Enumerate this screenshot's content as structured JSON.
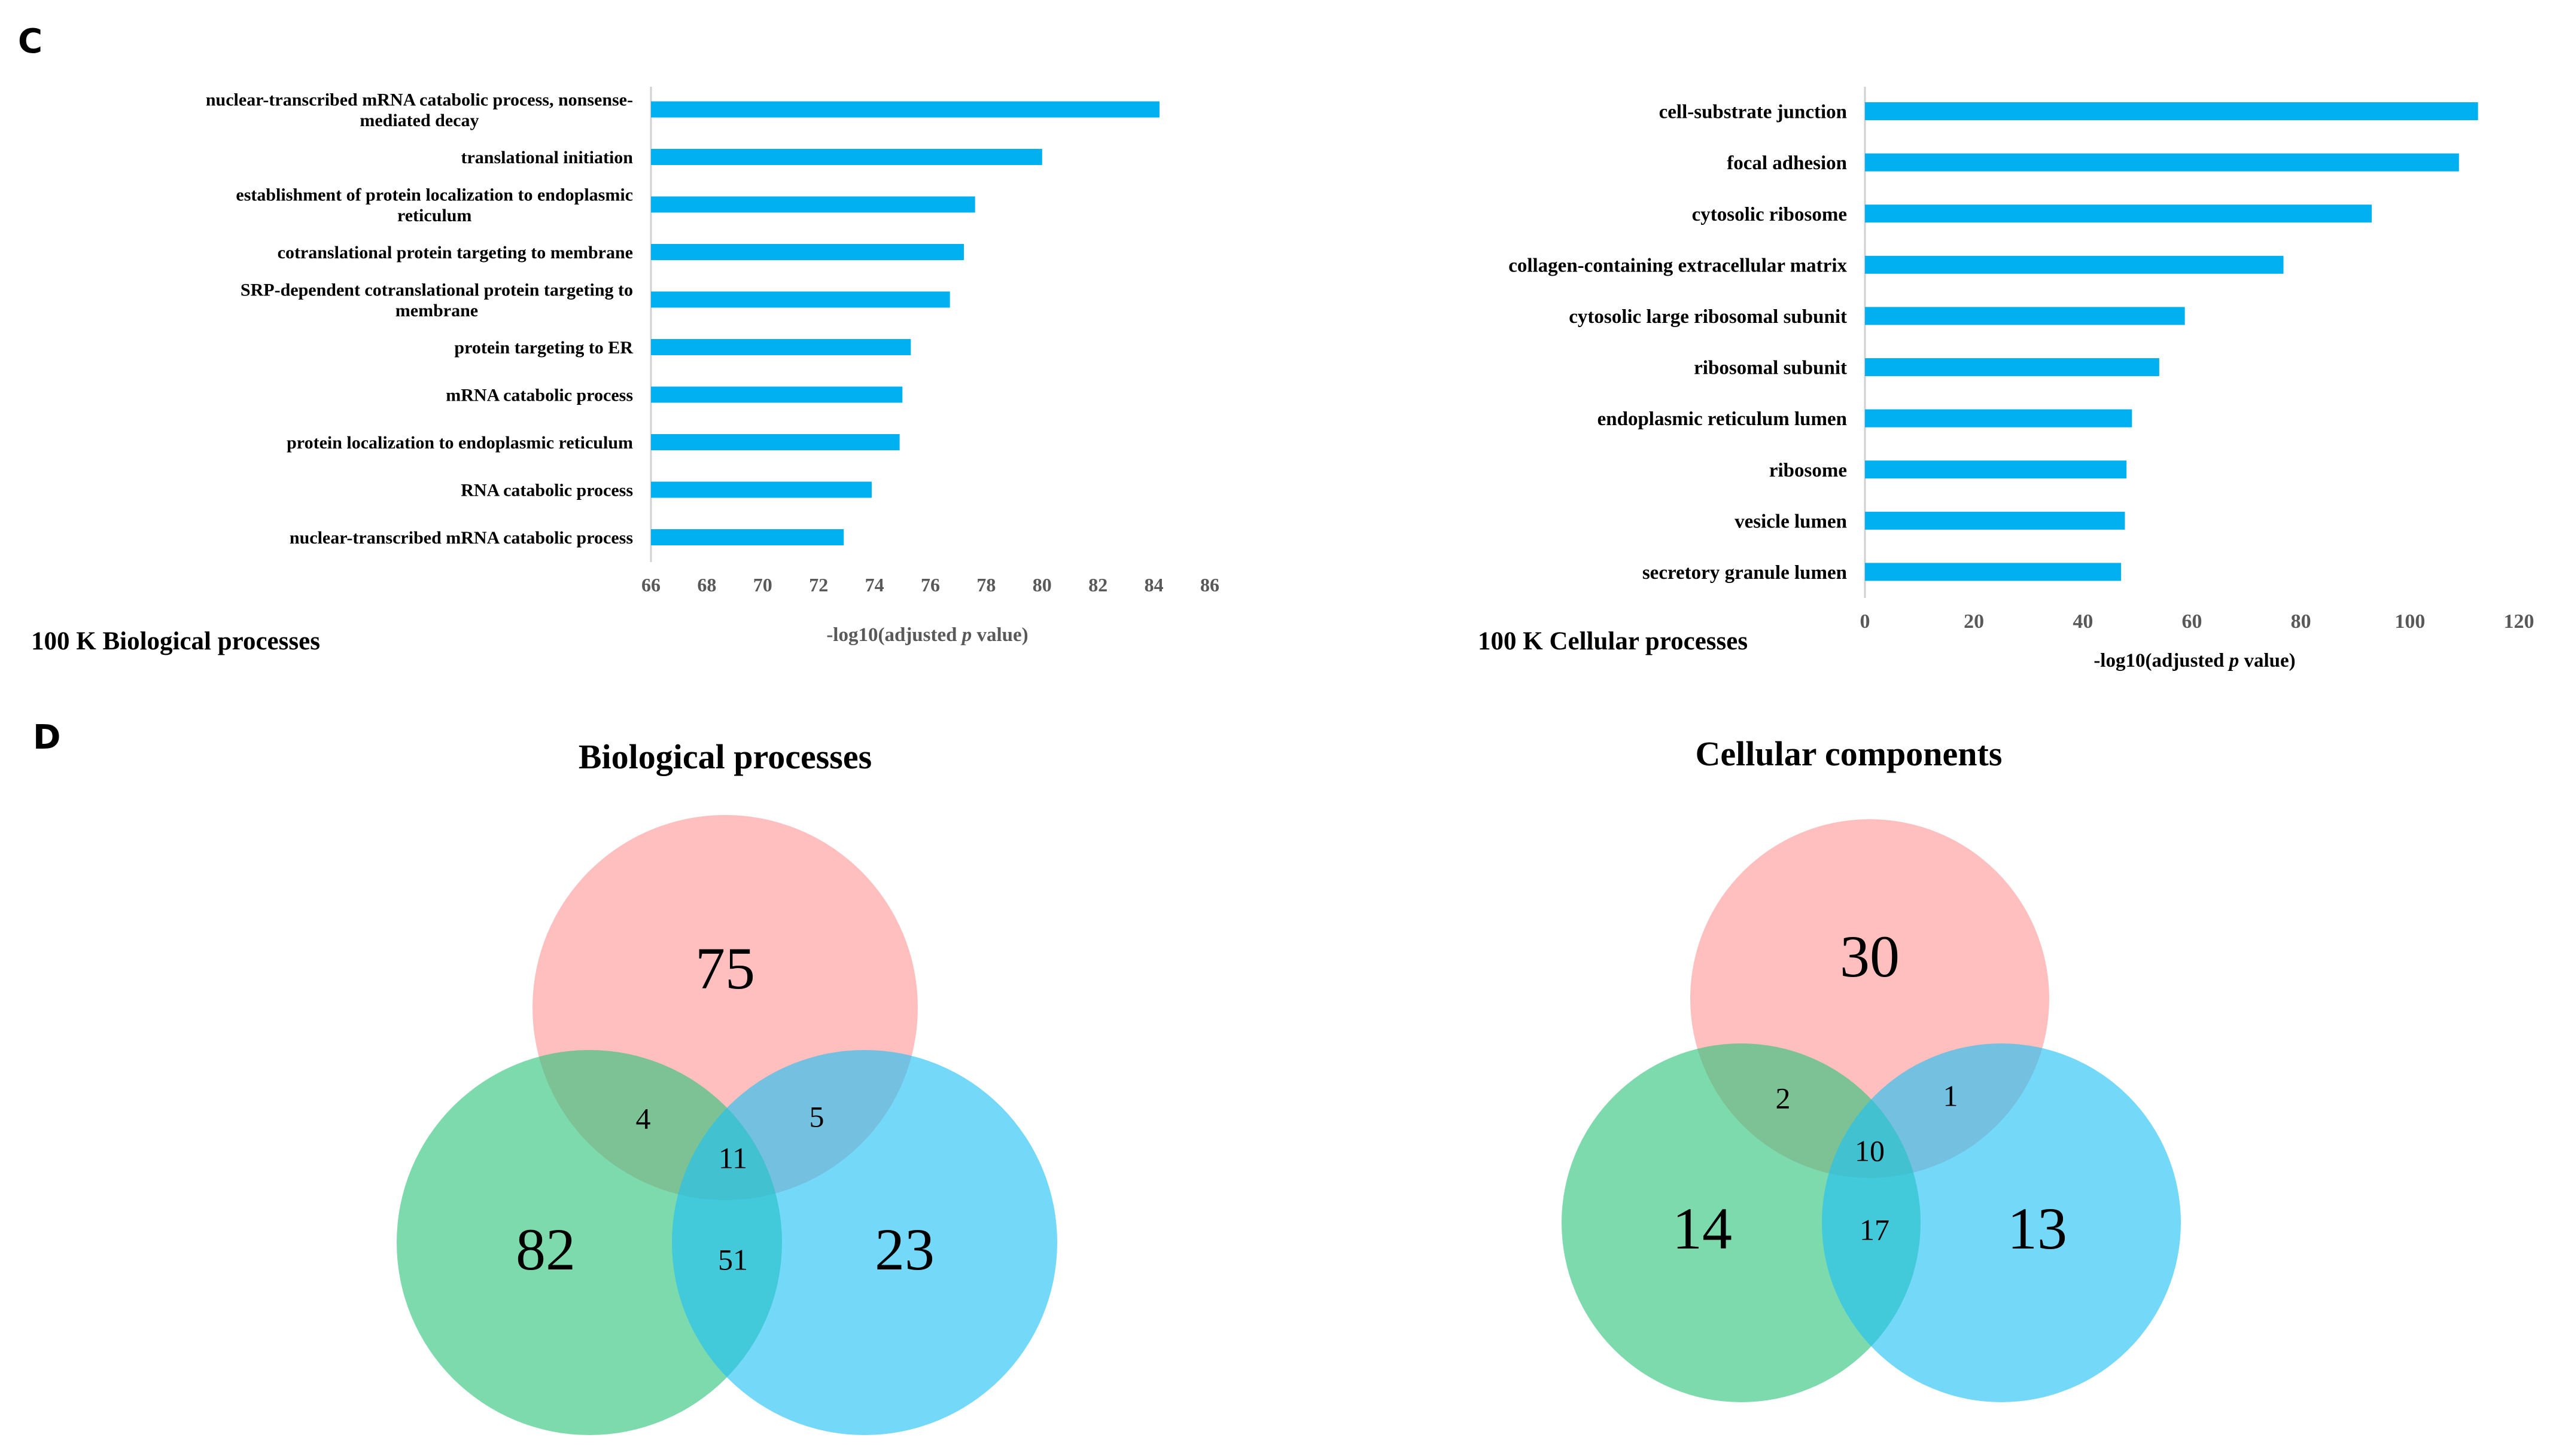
{
  "panels": {
    "c_label": "C",
    "d_label": "D"
  },
  "colors": {
    "bar": "#00B0F0",
    "axis": "#d0d0d0",
    "tick_text": "#595959",
    "venn_red": "#FF8A8A",
    "venn_green": "#2DC47A",
    "venn_blue": "#1EC0F5",
    "venn_center": "#00BE9A"
  },
  "chart_data": [
    {
      "type": "bar",
      "orientation": "horizontal",
      "title": "100 K Biological processes",
      "xlabel_prefix": "-log10(adjusted ",
      "xlabel_italic": "p",
      "xlabel_suffix": " value)",
      "xlim": [
        66,
        86
      ],
      "xticks": [
        66,
        68,
        70,
        72,
        74,
        76,
        78,
        80,
        82,
        84,
        86
      ],
      "categories": [
        [
          "nuclear-transcribed mRNA catabolic process, nonsense-",
          "mediated decay"
        ],
        [
          "translational initiation"
        ],
        [
          "establishment of protein localization to endoplasmic",
          "reticulum"
        ],
        [
          "cotranslational protein targeting to membrane"
        ],
        [
          "SRP-dependent cotranslational protein targeting to",
          "membrane"
        ],
        [
          "protein targeting to ER"
        ],
        [
          "mRNA catabolic process"
        ],
        [
          "protein localization to endoplasmic reticulum"
        ],
        [
          "RNA catabolic process"
        ],
        [
          "nuclear-transcribed mRNA catabolic process"
        ]
      ],
      "values": [
        84.2,
        80.0,
        77.6,
        77.2,
        76.7,
        75.3,
        75.0,
        74.9,
        73.9,
        72.9
      ]
    },
    {
      "type": "bar",
      "orientation": "horizontal",
      "title": "100 K Cellular processes",
      "xlabel_prefix": "-log10(adjusted ",
      "xlabel_italic": "p",
      "xlabel_suffix": " value)",
      "xlim": [
        0,
        120
      ],
      "xticks": [
        0,
        20,
        40,
        60,
        80,
        100,
        120
      ],
      "categories": [
        [
          "cell-substrate junction"
        ],
        [
          "focal adhesion"
        ],
        [
          "cytosolic ribosome"
        ],
        [
          "collagen-containing extracellular matrix"
        ],
        [
          "cytosolic large ribosomal subunit"
        ],
        [
          "ribosomal subunit"
        ],
        [
          "endoplasmic reticulum lumen"
        ],
        [
          "ribosome"
        ],
        [
          "vesicle lumen"
        ],
        [
          "secretory granule lumen"
        ]
      ],
      "values": [
        112.5,
        109.0,
        93.0,
        76.8,
        58.7,
        54.0,
        49.0,
        48.0,
        47.7,
        47.0
      ]
    }
  ],
  "venn": [
    {
      "title": "Biological processes",
      "regions": {
        "top_only": "75",
        "left_only": "82",
        "right_only": "23",
        "top_left": "4",
        "top_right": "5",
        "center": "11",
        "left_right": "51"
      }
    },
    {
      "title": "Cellular components",
      "regions": {
        "top_only": "30",
        "left_only": "14",
        "right_only": "13",
        "top_left": "2",
        "top_right": "1",
        "center": "10",
        "left_right": "17"
      }
    }
  ]
}
